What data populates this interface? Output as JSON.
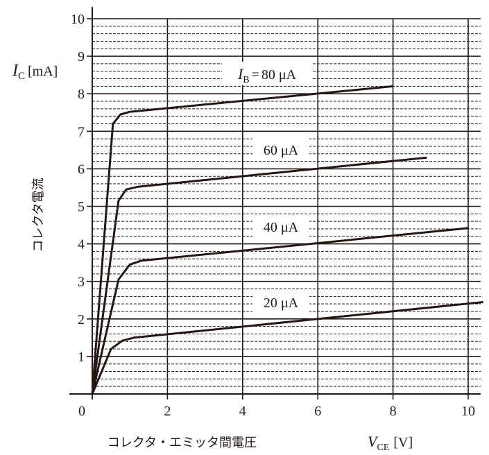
{
  "chart_data": {
    "type": "line",
    "x_label_text": "コレクタ・エミッタ間電圧",
    "x_symbol": "V",
    "x_subscript": "CE",
    "x_unit": "[V]",
    "y_symbol": "I",
    "y_subscript": "C",
    "y_unit": "[mA]",
    "y_label_text": "コレクタ電流",
    "xlim": [
      0,
      10.3
    ],
    "ylim": [
      0,
      10
    ],
    "x_ticks": [
      0,
      2,
      4,
      6,
      8,
      10
    ],
    "y_ticks": [
      1,
      2,
      3,
      4,
      5,
      6,
      7,
      8,
      9,
      10
    ],
    "origin_label": "0",
    "grid": "major solid 1 mA / 2 V, minor dashed 0.2 mA",
    "series": [
      {
        "name": "80 μA",
        "label_prefix": "I",
        "label_subscript": "B",
        "label_eq": "=",
        "points": [
          [
            0,
            0
          ],
          [
            0.55,
            7.2
          ],
          [
            0.75,
            7.45
          ],
          [
            1.0,
            7.52
          ],
          [
            8.0,
            8.2
          ]
        ]
      },
      {
        "name": "60 μA",
        "points": [
          [
            0,
            0
          ],
          [
            0.7,
            5.15
          ],
          [
            0.9,
            5.45
          ],
          [
            1.2,
            5.52
          ],
          [
            8.9,
            6.3
          ]
        ]
      },
      {
        "name": "40 μA",
        "points": [
          [
            0,
            0
          ],
          [
            0.7,
            3.05
          ],
          [
            1.0,
            3.45
          ],
          [
            1.3,
            3.55
          ],
          [
            10.0,
            4.42
          ]
        ]
      },
      {
        "name": "20 μA",
        "points": [
          [
            0,
            0
          ],
          [
            0.5,
            1.2
          ],
          [
            0.8,
            1.42
          ],
          [
            1.1,
            1.5
          ],
          [
            10.4,
            2.45
          ]
        ]
      }
    ]
  }
}
